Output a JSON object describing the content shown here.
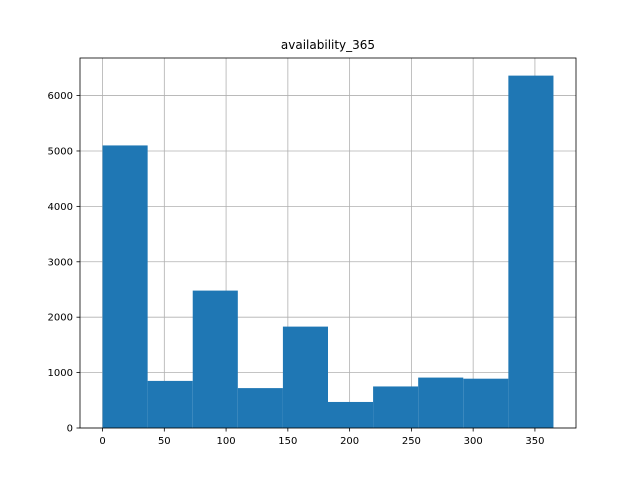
{
  "chart_data": {
    "type": "bar",
    "title": "availability_365",
    "xlabel": "",
    "ylabel": "",
    "bins": [
      {
        "x0": 0,
        "x1": 36.5,
        "value": 5100
      },
      {
        "x0": 36.5,
        "x1": 73,
        "value": 850
      },
      {
        "x0": 73,
        "x1": 109.5,
        "value": 2480
      },
      {
        "x0": 109.5,
        "x1": 146,
        "value": 720
      },
      {
        "x0": 146,
        "x1": 182.5,
        "value": 1830
      },
      {
        "x0": 182.5,
        "x1": 219,
        "value": 470
      },
      {
        "x0": 219,
        "x1": 255.5,
        "value": 750
      },
      {
        "x0": 255.5,
        "x1": 292,
        "value": 910
      },
      {
        "x0": 292,
        "x1": 328.5,
        "value": 890
      },
      {
        "x0": 328.5,
        "x1": 365,
        "value": 6360
      }
    ],
    "xlim": [
      -18.25,
      383.25
    ],
    "ylim": [
      0,
      6678
    ],
    "xticks": [
      0,
      50,
      100,
      150,
      200,
      250,
      300,
      350
    ],
    "yticks": [
      0,
      1000,
      2000,
      3000,
      4000,
      5000,
      6000
    ],
    "grid": true,
    "bar_color": "#1f77b4"
  }
}
